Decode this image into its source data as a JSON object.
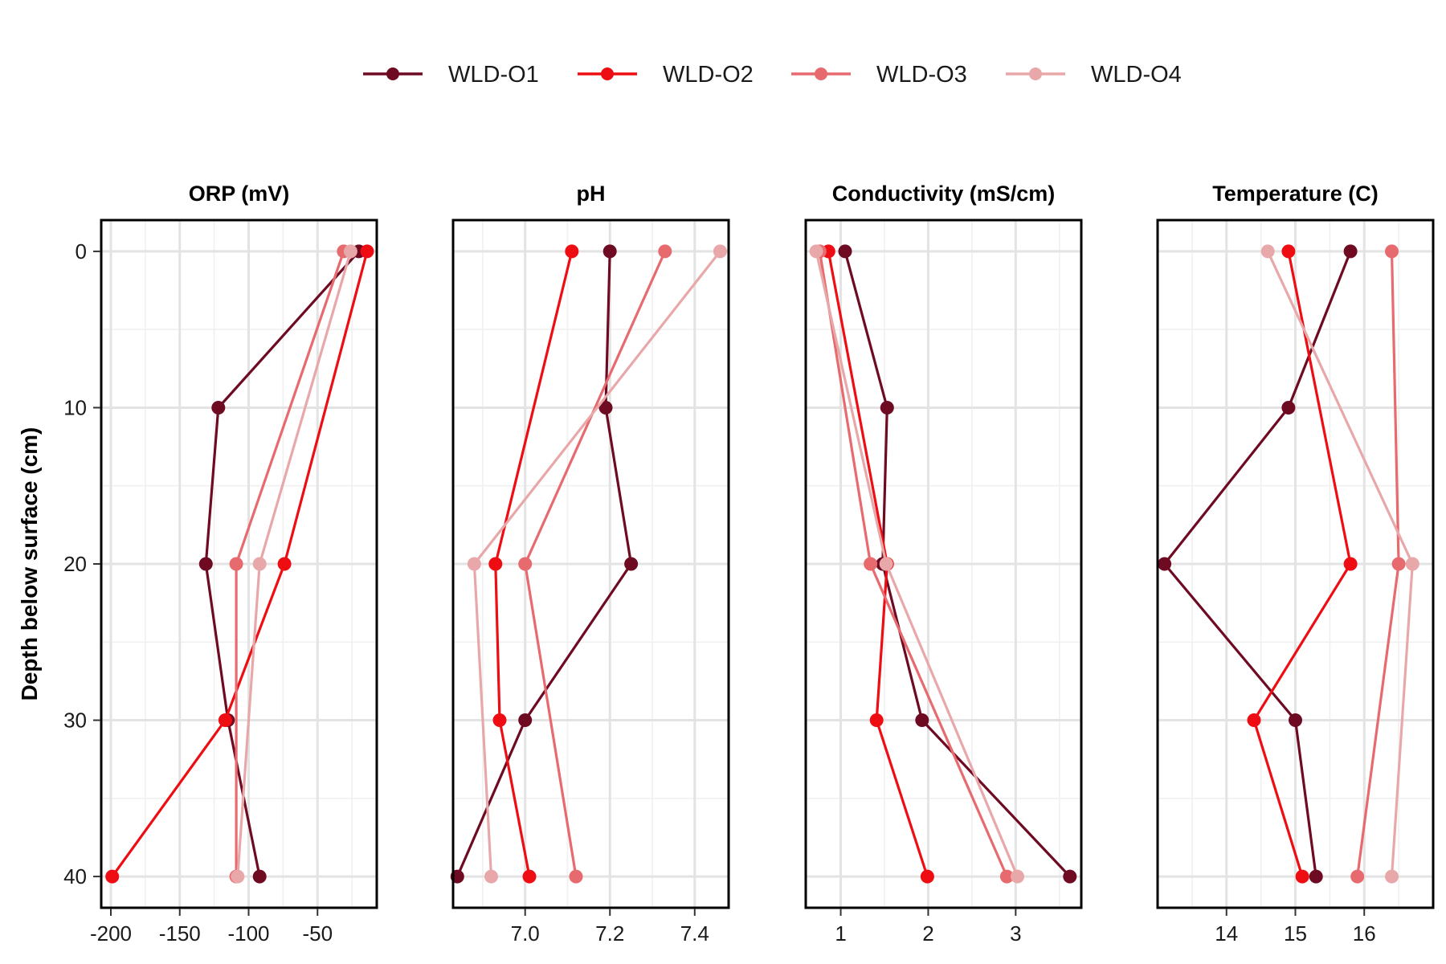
{
  "chart_data": {
    "type": "line",
    "y_axis": {
      "title": "Depth below surface (cm)",
      "ticks": [
        0,
        10,
        20,
        30,
        40
      ],
      "range": [
        -2,
        42
      ],
      "reversed": true
    },
    "legend": {
      "placement": "top",
      "entries": [
        {
          "name": "WLD-O1",
          "color": "#6e0a22"
        },
        {
          "name": "WLD-O2",
          "color": "#ee0d12"
        },
        {
          "name": "WLD-O3",
          "color": "#e76a6e"
        },
        {
          "name": "WLD-O4",
          "color": "#e8a8aa"
        }
      ]
    },
    "depths": [
      0,
      10,
      20,
      30,
      40
    ],
    "panels": [
      {
        "title": "ORP (mV)",
        "xlim": [
          -207,
          -7
        ],
        "ticks": [
          -200,
          -150,
          -100,
          -50
        ],
        "tick_labels": [
          "-200",
          "-150",
          "-100",
          "-50"
        ],
        "series": [
          {
            "name": "WLD-O1",
            "values": [
              -20,
              -122,
              -131,
              -115,
              -92
            ]
          },
          {
            "name": "WLD-O2",
            "values": [
              -14,
              null,
              -74,
              -117,
              -199
            ]
          },
          {
            "name": "WLD-O3",
            "values": [
              -31,
              null,
              -109,
              null,
              -109
            ]
          },
          {
            "name": "WLD-O4",
            "values": [
              -26,
              null,
              -92,
              null,
              -108
            ]
          }
        ]
      },
      {
        "title": "pH",
        "xlim": [
          6.83,
          7.48
        ],
        "ticks": [
          7.0,
          7.2,
          7.4
        ],
        "tick_labels": [
          "7.0",
          "7.2",
          "7.4"
        ],
        "series": [
          {
            "name": "WLD-O1",
            "values": [
              7.2,
              7.19,
              7.25,
              7.0,
              6.84
            ]
          },
          {
            "name": "WLD-O2",
            "values": [
              7.11,
              null,
              6.93,
              6.94,
              7.01
            ]
          },
          {
            "name": "WLD-O3",
            "values": [
              7.33,
              null,
              7.0,
              null,
              7.12
            ]
          },
          {
            "name": "WLD-O4",
            "values": [
              7.46,
              null,
              6.88,
              null,
              6.92
            ]
          }
        ]
      },
      {
        "title": "Conductivity (mS/cm)",
        "xlim": [
          0.6,
          3.75
        ],
        "ticks": [
          1,
          2,
          3
        ],
        "tick_labels": [
          "1",
          "2",
          "3"
        ],
        "series": [
          {
            "name": "WLD-O1",
            "values": [
              1.05,
              1.53,
              1.48,
              1.93,
              3.62
            ]
          },
          {
            "name": "WLD-O2",
            "values": [
              0.86,
              null,
              1.53,
              1.41,
              1.99
            ]
          },
          {
            "name": "WLD-O3",
            "values": [
              0.76,
              null,
              1.34,
              null,
              2.9
            ]
          },
          {
            "name": "WLD-O4",
            "values": [
              0.72,
              null,
              1.52,
              null,
              3.02
            ]
          }
        ]
      },
      {
        "title": "Temperature (C)",
        "xlim": [
          13.0,
          17.0
        ],
        "ticks": [
          14,
          15,
          16
        ],
        "tick_labels": [
          "14",
          "15",
          "16"
        ],
        "series": [
          {
            "name": "WLD-O1",
            "values": [
              15.8,
              14.9,
              13.1,
              15.0,
              15.3
            ]
          },
          {
            "name": "WLD-O2",
            "values": [
              14.9,
              null,
              15.8,
              14.4,
              15.1
            ]
          },
          {
            "name": "WLD-O3",
            "values": [
              16.4,
              null,
              16.5,
              null,
              15.9
            ]
          },
          {
            "name": "WLD-O4",
            "values": [
              14.6,
              null,
              16.7,
              null,
              16.4
            ]
          }
        ]
      }
    ]
  }
}
